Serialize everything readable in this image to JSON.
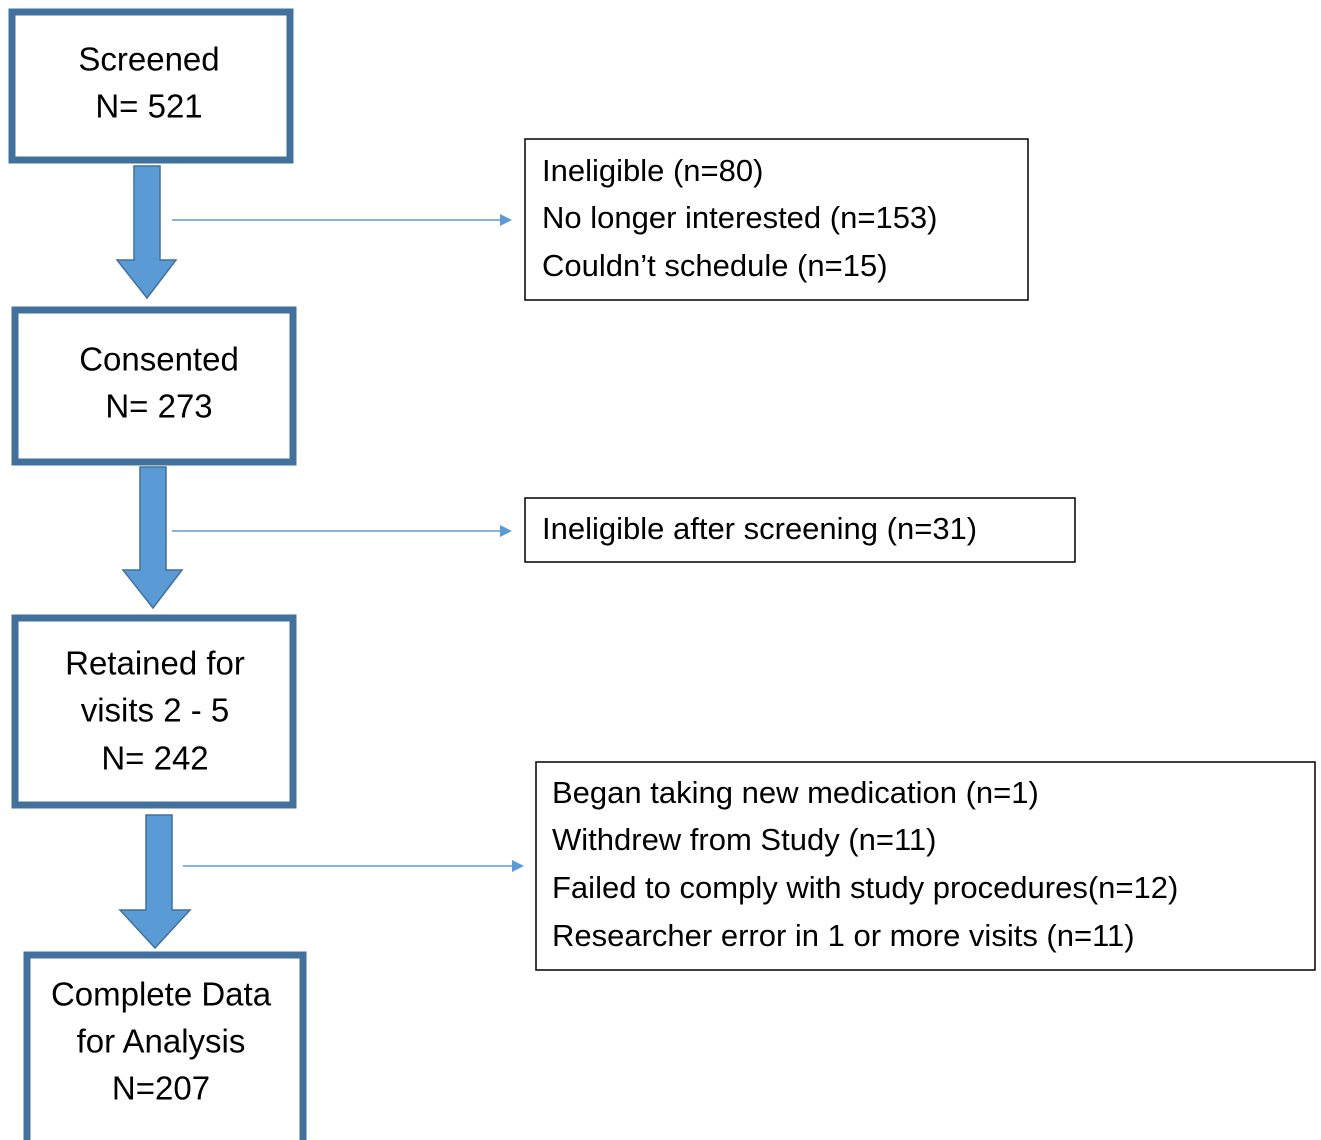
{
  "nodes": [
    {
      "lines": [
        "Screened",
        "N= 521"
      ]
    },
    {
      "lines": [
        "Consented",
        "N= 273"
      ]
    },
    {
      "lines": [
        "Retained for",
        "visits 2 - 5",
        "N= 242"
      ]
    },
    {
      "lines": [
        "Complete Data",
        "for Analysis",
        "N=207"
      ]
    }
  ],
  "exclusions": [
    {
      "lines": [
        "Ineligible (n=80)",
        "No longer interested (n=153)",
        "Couldn’t schedule (n=15)"
      ]
    },
    {
      "lines": [
        "Ineligible after screening (n=31)"
      ]
    },
    {
      "lines": [
        "Began taking new medication (n=1)",
        "Withdrew from Study (n=11)",
        "Failed to comply with study procedures(n=12)",
        "Researcher error in 1 or more visits (n=11)"
      ]
    }
  ]
}
